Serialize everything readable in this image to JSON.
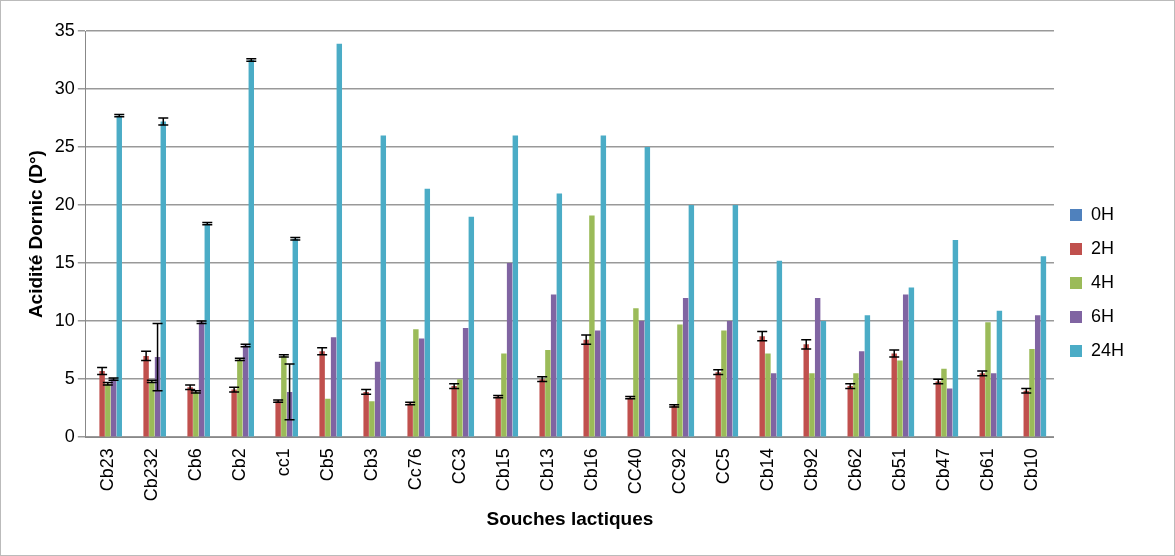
{
  "chart_data": {
    "type": "bar",
    "xlabel": "Souches lactiques",
    "ylabel": "Acidité Dornic (D°)",
    "categories": [
      "Cb23",
      "Cb232",
      "Cb6",
      "Cb2",
      "cc1",
      "Cb5",
      "Cb3",
      "Cc76",
      "CC3",
      "Cb15",
      "Cb13",
      "Cb16",
      "CC40",
      "CC92",
      "CC5",
      "Cb14",
      "Cb92",
      "Cb62",
      "Cb51",
      "Cb47",
      "Cb61",
      "Cb10"
    ],
    "series": [
      {
        "name": "0H",
        "color": "#4f81bd",
        "values": [
          0,
          0,
          0,
          0,
          0,
          0,
          0,
          0,
          0,
          0,
          0,
          0,
          0,
          0,
          0,
          0,
          0,
          0,
          0,
          0,
          0,
          0
        ]
      },
      {
        "name": "2H",
        "color": "#c0504d",
        "values": [
          5.7,
          7.0,
          4.3,
          4.1,
          3.1,
          7.4,
          3.9,
          2.9,
          4.4,
          3.5,
          5.0,
          8.4,
          3.4,
          2.7,
          5.6,
          8.7,
          8.0,
          4.4,
          7.2,
          4.8,
          5.5,
          4.0
        ],
        "errors": [
          0.3,
          0.4,
          0.2,
          0.2,
          0.1,
          0.3,
          0.2,
          0.1,
          0.2,
          0.1,
          0.2,
          0.4,
          0.1,
          0.1,
          0.2,
          0.4,
          0.4,
          0.2,
          0.3,
          0.2,
          0.2,
          0.2
        ]
      },
      {
        "name": "4H",
        "color": "#9bbb59",
        "values": [
          4.6,
          4.8,
          3.9,
          6.7,
          7.0,
          3.3,
          3.1,
          9.3,
          5.0,
          7.2,
          7.5,
          19.1,
          11.1,
          9.7,
          9.2,
          7.2,
          5.5,
          5.5,
          6.6,
          5.9,
          9.9,
          7.6
        ],
        "errors": [
          0.1,
          0.1,
          0.1,
          0.1,
          0.1,
          null,
          null,
          null,
          null,
          null,
          null,
          null,
          null,
          null,
          null,
          null,
          null,
          null,
          null,
          null,
          null,
          null
        ]
      },
      {
        "name": "6H",
        "color": "#8064a2",
        "values": [
          5.0,
          6.9,
          9.9,
          7.9,
          3.9,
          8.6,
          6.5,
          8.5,
          9.4,
          15.0,
          12.3,
          9.2,
          10.0,
          12.0,
          10.0,
          5.5,
          12.0,
          7.4,
          12.3,
          4.2,
          5.5,
          10.5
        ],
        "errors": [
          0.1,
          2.9,
          0.1,
          0.1,
          2.4,
          null,
          null,
          null,
          null,
          null,
          null,
          null,
          null,
          null,
          null,
          null,
          null,
          null,
          null,
          null,
          null,
          null
        ]
      },
      {
        "name": "24H",
        "color": "#4bacc6",
        "values": [
          27.7,
          27.2,
          18.4,
          32.5,
          17.1,
          33.9,
          26.0,
          21.4,
          19.0,
          26.0,
          21.0,
          26.0,
          25.0,
          20.0,
          20.0,
          15.2,
          10.0,
          10.5,
          12.9,
          17.0,
          10.9,
          15.6
        ],
        "errors": [
          0.1,
          0.3,
          0.1,
          0.1,
          0.1,
          null,
          null,
          null,
          null,
          null,
          null,
          null,
          null,
          null,
          null,
          null,
          null,
          null,
          null,
          null,
          null,
          null
        ]
      }
    ],
    "ylim": [
      0,
      35
    ],
    "yticks": [
      0,
      5,
      10,
      15,
      20,
      25,
      30,
      35
    ],
    "grid": "y",
    "legend": "right"
  }
}
